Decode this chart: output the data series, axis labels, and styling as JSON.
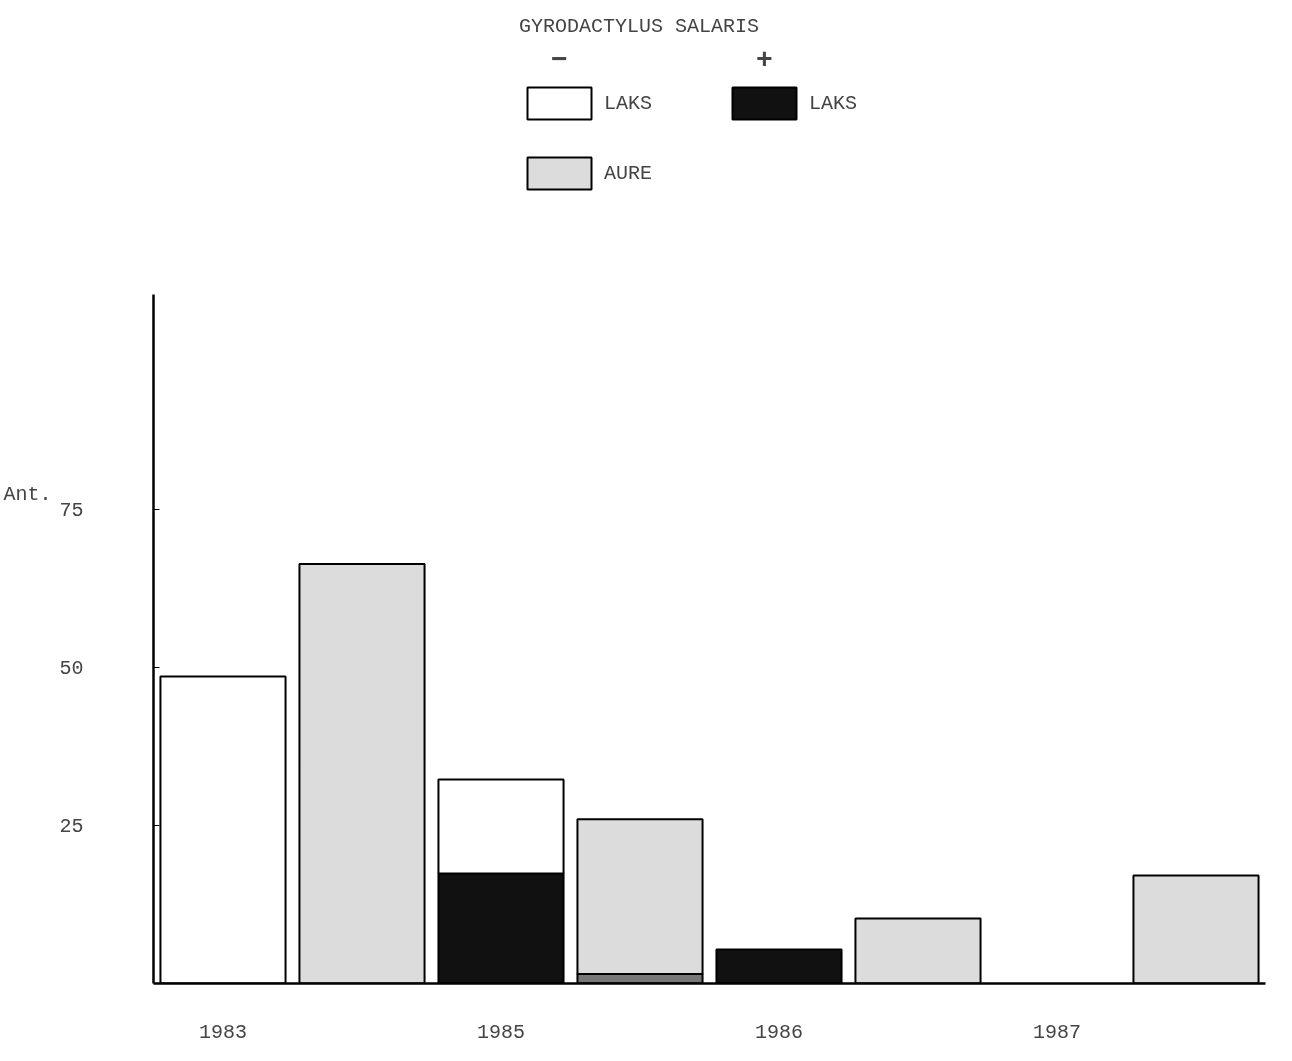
{
  "chart_data": {
    "type": "bar",
    "legend_title": "GYRODACTYLUS SALARIS",
    "ylabel": "Ant.",
    "categories": [
      "1983",
      null,
      "1985",
      null,
      "1986",
      null,
      "1987",
      null
    ],
    "series": [
      {
        "name": "LAKS",
        "color": "#111111",
        "values": [
          null,
          null,
          17.4,
          null,
          5.4,
          null,
          null,
          null
        ]
      },
      {
        "color": "#777777",
        "values": [
          null,
          null,
          null,
          1.5,
          null,
          null,
          null,
          null
        ]
      },
      {
        "name": "LAKS",
        "color": "#ffffff",
        "values": [
          48.6,
          null,
          14.9,
          null,
          null,
          null,
          null,
          null
        ]
      },
      {
        "name": "AURE",
        "color": "#dcdcdc",
        "values": [
          null,
          66.4,
          null,
          24.5,
          null,
          10.3,
          null,
          17.1
        ]
      }
    ],
    "annotations": [
      "−",
      "+"
    ],
    "stacked": true,
    "ylim": [
      0,
      109
    ],
    "yticks": [
      25,
      50,
      75
    ],
    "legend": "top",
    "grid": false
  }
}
